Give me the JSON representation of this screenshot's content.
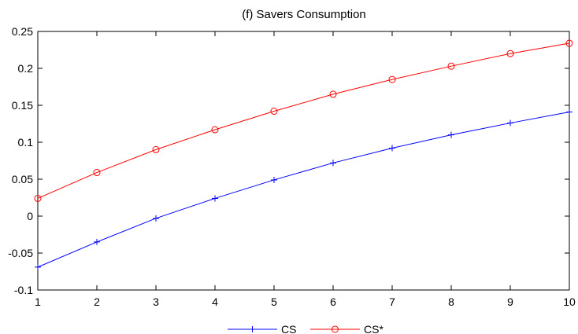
{
  "chart_data": {
    "type": "line",
    "title": "(f) Savers Consumption",
    "xlabel": "",
    "ylabel": "",
    "x": [
      1,
      2,
      3,
      4,
      5,
      6,
      7,
      8,
      9,
      10
    ],
    "xlim": [
      1,
      10
    ],
    "ylim": [
      -0.1,
      0.25
    ],
    "xticks": [
      1,
      2,
      3,
      4,
      5,
      6,
      7,
      8,
      9,
      10
    ],
    "xtick_labels": [
      "1",
      "2",
      "3",
      "4",
      "5",
      "6",
      "7",
      "8",
      "9",
      "10"
    ],
    "yticks": [
      -0.1,
      -0.05,
      0,
      0.05,
      0.1,
      0.15,
      0.2,
      0.25
    ],
    "ytick_labels": [
      "-0.1",
      "-0.05",
      "0",
      "0.05",
      "0.1",
      "0.15",
      "0.2",
      "0.25"
    ],
    "grid": false,
    "legend_position": "bottom-center",
    "series": [
      {
        "name": "CS",
        "color": "#0000ff",
        "marker": "plus",
        "values": [
          -0.069,
          -0.035,
          -0.003,
          0.024,
          0.049,
          0.072,
          0.092,
          0.11,
          0.126,
          0.141
        ]
      },
      {
        "name": "CS*",
        "color": "#ff0000",
        "marker": "circle",
        "values": [
          0.024,
          0.059,
          0.09,
          0.117,
          0.142,
          0.165,
          0.185,
          0.203,
          0.22,
          0.234
        ]
      }
    ]
  }
}
